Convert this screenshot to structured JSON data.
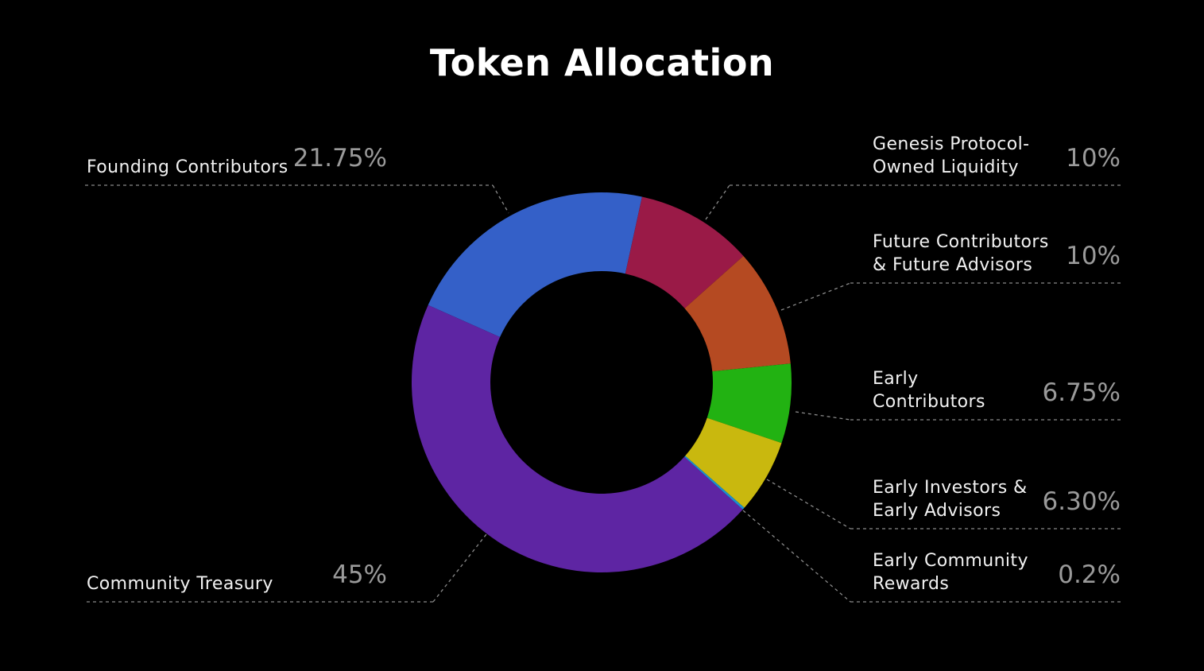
{
  "chart_data": {
    "type": "pie",
    "title": "Token Allocation",
    "hole": true,
    "slices": [
      {
        "label": "Founding Contributors",
        "value_text": "21.75%",
        "value": 21.75,
        "color": "#3460c8"
      },
      {
        "label": "Genesis Protocol-\nOwned Liquidity",
        "value_text": "10%",
        "value": 10,
        "color": "#9a1a47"
      },
      {
        "label": "Future Contributors\n& Future Advisors",
        "value_text": "10%",
        "value": 10,
        "color": "#b54a22"
      },
      {
        "label": "Early\nContributors",
        "value_text": "6.75%",
        "value": 6.75,
        "color": "#22b212"
      },
      {
        "label": "Early Investors &\nEarly Advisors",
        "value_text": "6.30%",
        "value": 6.3,
        "color": "#c9b80e"
      },
      {
        "label": "Early Community\nRewards",
        "value_text": "0.2%",
        "value": 0.2,
        "color": "#1a8fd0"
      },
      {
        "label": "Community Treasury",
        "value_text": "45%",
        "value": 45,
        "color": "#5e25a3"
      }
    ]
  }
}
